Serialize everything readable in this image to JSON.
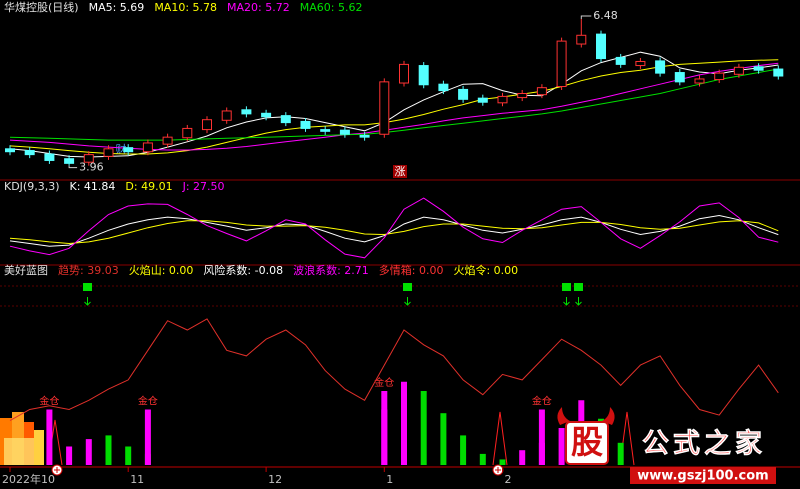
{
  "chart_data": [
    {
      "type": "candlestick",
      "title": "华煤控股(日线)",
      "ylim": [
        3.8,
        6.6
      ],
      "candles": {
        "up_color": "#ff3232",
        "down_color": "#54ffff",
        "open": [
          4.25,
          4.22,
          4.16,
          4.08,
          4.02,
          4.12,
          4.27,
          4.2,
          4.33,
          4.44,
          4.58,
          4.74,
          4.92,
          4.86,
          4.82,
          4.72,
          4.58,
          4.57,
          4.48,
          4.5,
          5.38,
          5.68,
          5.36,
          5.27,
          5.12,
          5.04,
          5.13,
          5.18,
          5.32,
          6.05,
          6.22,
          5.82,
          5.68,
          5.76,
          5.56,
          5.38,
          5.44,
          5.53,
          5.66,
          5.62
        ],
        "high": [
          4.31,
          4.28,
          4.22,
          4.14,
          4.21,
          4.31,
          4.33,
          4.41,
          4.51,
          4.66,
          4.81,
          4.96,
          4.98,
          4.92,
          4.88,
          4.78,
          4.64,
          4.63,
          4.54,
          5.46,
          5.76,
          5.74,
          5.42,
          5.33,
          5.18,
          5.21,
          5.26,
          5.36,
          6.16,
          6.48,
          6.28,
          5.88,
          5.81,
          5.82,
          5.62,
          5.51,
          5.61,
          5.71,
          5.72,
          5.68
        ],
        "low": [
          4.14,
          4.09,
          3.99,
          3.96,
          3.96,
          4.06,
          4.14,
          4.14,
          4.27,
          4.38,
          4.52,
          4.68,
          4.79,
          4.74,
          4.64,
          4.54,
          4.49,
          4.44,
          4.39,
          4.44,
          5.32,
          5.29,
          5.19,
          5.04,
          4.99,
          4.98,
          5.07,
          5.12,
          5.26,
          5.99,
          5.74,
          5.64,
          5.62,
          5.49,
          5.34,
          5.32,
          5.38,
          5.47,
          5.54,
          5.44
        ],
        "close": [
          4.2,
          4.15,
          4.05,
          4.0,
          4.15,
          4.25,
          4.2,
          4.35,
          4.45,
          4.6,
          4.75,
          4.9,
          4.85,
          4.8,
          4.7,
          4.6,
          4.55,
          4.5,
          4.45,
          5.4,
          5.7,
          5.35,
          5.25,
          5.1,
          5.05,
          5.15,
          5.2,
          5.3,
          6.1,
          6.2,
          5.8,
          5.7,
          5.75,
          5.55,
          5.4,
          5.45,
          5.55,
          5.65,
          5.6,
          5.5
        ]
      },
      "series": [
        {
          "name": "MA5: 5.69",
          "color": "#ffffff",
          "values": [
            4.25,
            4.22,
            4.17,
            4.12,
            4.11,
            4.12,
            4.13,
            4.19,
            4.28,
            4.37,
            4.47,
            4.61,
            4.71,
            4.78,
            4.8,
            4.77,
            4.7,
            4.63,
            4.56,
            4.7,
            4.92,
            5.09,
            5.23,
            5.36,
            5.37,
            5.25,
            5.17,
            5.16,
            5.36,
            5.59,
            5.73,
            5.82,
            5.91,
            5.84,
            5.64,
            5.57,
            5.54,
            5.6,
            5.64,
            5.69
          ]
        },
        {
          "name": "MA10: 5.78",
          "color": "#ffff00",
          "values": [
            4.3,
            4.28,
            4.25,
            4.22,
            4.19,
            4.17,
            4.16,
            4.16,
            4.18,
            4.22,
            4.28,
            4.36,
            4.44,
            4.52,
            4.58,
            4.62,
            4.64,
            4.66,
            4.66,
            4.7,
            4.76,
            4.84,
            4.93,
            5.01,
            5.1,
            5.14,
            5.19,
            5.24,
            5.32,
            5.42,
            5.5,
            5.56,
            5.6,
            5.66,
            5.7,
            5.72,
            5.74,
            5.76,
            5.77,
            5.78
          ]
        },
        {
          "name": "MA20: 5.72",
          "color": "#ff00ff",
          "values": [
            4.4,
            4.38,
            4.36,
            4.33,
            4.3,
            4.28,
            4.26,
            4.24,
            4.23,
            4.23,
            4.24,
            4.26,
            4.29,
            4.33,
            4.37,
            4.41,
            4.45,
            4.49,
            4.52,
            4.57,
            4.62,
            4.67,
            4.73,
            4.78,
            4.82,
            4.86,
            4.89,
            4.92,
            4.98,
            5.05,
            5.12,
            5.2,
            5.28,
            5.36,
            5.44,
            5.52,
            5.58,
            5.63,
            5.68,
            5.72
          ]
        },
        {
          "name": "MA60: 5.62",
          "color": "#00e000",
          "values": [
            4.45,
            4.44,
            4.43,
            4.42,
            4.41,
            4.4,
            4.4,
            4.4,
            4.4,
            4.41,
            4.42,
            4.43,
            4.44,
            4.45,
            4.46,
            4.47,
            4.48,
            4.49,
            4.5,
            4.53,
            4.57,
            4.61,
            4.65,
            4.69,
            4.73,
            4.77,
            4.81,
            4.85,
            4.9,
            4.96,
            5.02,
            5.08,
            5.14,
            5.2,
            5.28,
            5.36,
            5.44,
            5.5,
            5.56,
            5.62
          ]
        }
      ],
      "max_label": 6.48,
      "min_label": 3.96,
      "markers": [
        "财",
        "涨"
      ]
    },
    {
      "type": "line",
      "title": "KDJ(9,3,3)",
      "ylim": [
        -10,
        115
      ],
      "series": [
        {
          "name": "K: 41.84",
          "color": "#ffffff",
          "values": [
            30,
            25,
            20,
            22,
            35,
            50,
            62,
            70,
            75,
            72,
            65,
            58,
            50,
            55,
            62,
            60,
            48,
            35,
            28,
            40,
            62,
            75,
            70,
            60,
            50,
            45,
            52,
            60,
            70,
            75,
            65,
            52,
            42,
            48,
            58,
            72,
            78,
            70,
            55,
            41.84
          ]
        },
        {
          "name": "D: 49.01",
          "color": "#ffff00",
          "values": [
            35,
            32,
            28,
            25,
            28,
            35,
            45,
            55,
            63,
            68,
            68,
            65,
            60,
            58,
            58,
            59,
            56,
            50,
            43,
            42,
            48,
            57,
            62,
            62,
            58,
            54,
            53,
            55,
            60,
            65,
            65,
            61,
            55,
            52,
            54,
            60,
            66,
            68,
            64,
            49.01
          ]
        },
        {
          "name": "J: 27.50",
          "color": "#ff00ff",
          "values": [
            20,
            11,
            4,
            16,
            49,
            80,
            96,
            100,
            99,
            80,
            59,
            44,
            30,
            49,
            70,
            62,
            32,
            5,
            -2,
            36,
            90,
            111,
            86,
            56,
            34,
            27,
            50,
            70,
            90,
            95,
            65,
            34,
            16,
            40,
            66,
            96,
            102,
            74,
            37,
            27.5
          ]
        }
      ]
    },
    {
      "type": "indicator",
      "title": "美好蓝图",
      "ylim": [
        0,
        100
      ],
      "categories": [
        "2022年10",
        null,
        null,
        null,
        null,
        null,
        "11",
        null,
        null,
        null,
        null,
        null,
        null,
        "12",
        null,
        null,
        null,
        null,
        null,
        "1",
        null,
        null,
        null,
        null,
        null,
        "2",
        null,
        null,
        null,
        null,
        null,
        null,
        null,
        null,
        null,
        null,
        null,
        null,
        null,
        null
      ],
      "series": [
        {
          "name": "趋势: 39.03",
          "color": "#e0302a",
          "values": [
            24,
            30,
            32,
            30,
            35,
            41,
            46,
            62,
            78,
            73,
            79,
            62,
            59,
            68,
            73,
            65,
            51,
            41,
            35,
            54,
            73,
            65,
            59,
            46,
            38,
            49,
            46,
            57,
            68,
            62,
            54,
            43,
            54,
            59,
            43,
            30,
            27,
            41,
            54,
            39.03
          ]
        }
      ],
      "readouts": [
        {
          "text": "火焰山: 0.00",
          "color": "#ffff00"
        },
        {
          "text": "风险系数: -0.08",
          "color": "#ffffff"
        },
        {
          "text": "波浪系数: 2.71",
          "color": "#ff00ff"
        },
        {
          "text": "多情箱: 0.00",
          "color": "#ff3232"
        },
        {
          "text": "火焰令: 0.00",
          "color": "#ffff00"
        }
      ],
      "bars": [
        {
          "color": "#ff00ff",
          "values": [
            null,
            null,
            null,
            10,
            14,
            null,
            null,
            null,
            null,
            null,
            null,
            null,
            null,
            null,
            null,
            null,
            null,
            null,
            null,
            30,
            45,
            null,
            null,
            null,
            null,
            null,
            8,
            12,
            20,
            35,
            null,
            null,
            null,
            null,
            null,
            null,
            null,
            null,
            null,
            null
          ]
        },
        {
          "color": "#00dd00",
          "values": [
            null,
            null,
            null,
            null,
            null,
            16,
            10,
            6,
            null,
            null,
            null,
            null,
            null,
            null,
            null,
            null,
            null,
            null,
            null,
            null,
            null,
            40,
            28,
            16,
            6,
            3,
            null,
            null,
            null,
            null,
            25,
            12,
            null,
            null,
            null,
            null,
            null,
            null,
            null,
            null
          ]
        }
      ],
      "signal": {
        "label": "金仓",
        "color": "#ff00ff",
        "label_color": "#ff3232",
        "values": [
          null,
          null,
          30,
          null,
          null,
          null,
          null,
          30,
          null,
          null,
          null,
          null,
          null,
          null,
          null,
          null,
          null,
          null,
          null,
          40,
          null,
          null,
          null,
          null,
          null,
          null,
          null,
          30,
          null,
          null,
          null,
          null,
          null,
          null,
          null,
          null,
          null,
          null,
          null,
          null
        ]
      }
    }
  ],
  "watermark": {
    "icon": "股",
    "name": "公式之家",
    "url": "www.gszj100.com"
  }
}
